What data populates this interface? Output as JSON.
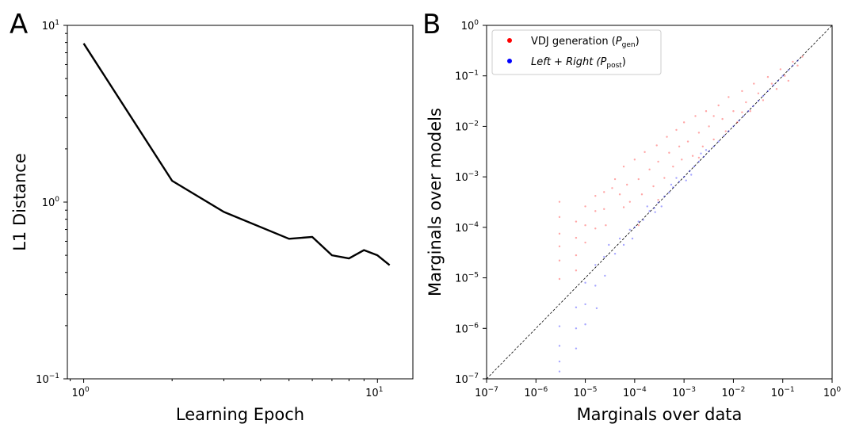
{
  "chart_data": [
    {
      "panel_label": "A",
      "type": "line",
      "xlabel": "Learning Epoch",
      "ylabel": "L1 Distance",
      "xscale": "log",
      "yscale": "log",
      "xlim": [
        0.88,
        13.2
      ],
      "ylim": [
        0.1,
        10
      ],
      "x_ticks": [
        {
          "value": 1,
          "base": "10",
          "exp": "0"
        },
        {
          "value": 10,
          "base": "10",
          "exp": "1"
        }
      ],
      "y_ticks": [
        {
          "value": 0.1,
          "base": "10",
          "exp": "−1"
        },
        {
          "value": 1,
          "base": "10",
          "exp": "0"
        },
        {
          "value": 10,
          "base": "10",
          "exp": "1"
        }
      ],
      "grid": false,
      "series": [
        {
          "color": "#000000",
          "x": [
            1,
            2,
            3,
            5,
            6,
            7,
            8,
            9,
            10,
            11
          ],
          "y": [
            7.9,
            1.32,
            0.88,
            0.62,
            0.635,
            0.5,
            0.48,
            0.535,
            0.5,
            0.44
          ]
        }
      ]
    },
    {
      "panel_label": "B",
      "type": "scatter",
      "xlabel": "Marginals over data",
      "ylabel": "Marginals over models",
      "xscale": "log",
      "yscale": "log",
      "xlim": [
        1e-07,
        1
      ],
      "ylim": [
        1e-07,
        1
      ],
      "x_ticks": [
        {
          "value": 1e-07,
          "base": "10",
          "exp": "−7"
        },
        {
          "value": 1e-06,
          "base": "10",
          "exp": "−6"
        },
        {
          "value": 1e-05,
          "base": "10",
          "exp": "−5"
        },
        {
          "value": 0.0001,
          "base": "10",
          "exp": "−4"
        },
        {
          "value": 0.001,
          "base": "10",
          "exp": "−3"
        },
        {
          "value": 0.01,
          "base": "10",
          "exp": "−2"
        },
        {
          "value": 0.1,
          "base": "10",
          "exp": "−1"
        },
        {
          "value": 1,
          "base": "10",
          "exp": "0"
        }
      ],
      "y_ticks": [
        {
          "value": 1e-07,
          "base": "10",
          "exp": "−7"
        },
        {
          "value": 1e-06,
          "base": "10",
          "exp": "−6"
        },
        {
          "value": 1e-05,
          "base": "10",
          "exp": "−5"
        },
        {
          "value": 0.0001,
          "base": "10",
          "exp": "−4"
        },
        {
          "value": 0.001,
          "base": "10",
          "exp": "−3"
        },
        {
          "value": 0.01,
          "base": "10",
          "exp": "−2"
        },
        {
          "value": 0.1,
          "base": "10",
          "exp": "−1"
        },
        {
          "value": 1,
          "base": "10",
          "exp": "0"
        }
      ],
      "grid": false,
      "diagonal": "y = x (dashed, black)",
      "legend_position": "upper-left",
      "series": [
        {
          "name": "VDJ generation (P_gen)",
          "legend_main": "VDJ generation (",
          "legend_sym": "P",
          "legend_sub": "gen",
          "legend_close": ")",
          "legend_italic": false,
          "color": "#ff0000",
          "points": [
            [
              3e-06,
              0.00032
            ],
            [
              3e-06,
              0.00016
            ],
            [
              3e-06,
              7.5e-05
            ],
            [
              3e-06,
              4.2e-05
            ],
            [
              3e-06,
              2.2e-05
            ],
            [
              3e-06,
              9.5e-06
            ],
            [
              6.5e-06,
              0.00013
            ],
            [
              6.5e-06,
              6.2e-05
            ],
            [
              6.5e-06,
              2.8e-05
            ],
            [
              6.5e-06,
              1.4e-05
            ],
            [
              1e-05,
              0.00026
            ],
            [
              1e-05,
              0.00011
            ],
            [
              1e-05,
              5e-05
            ],
            [
              1.6e-05,
              0.00042
            ],
            [
              1.6e-05,
              0.00021
            ],
            [
              1.6e-05,
              9.5e-05
            ],
            [
              2.4e-05,
              0.0005
            ],
            [
              2.4e-05,
              0.00023
            ],
            [
              2.6e-05,
              0.00011
            ],
            [
              4e-05,
              0.0009
            ],
            [
              5e-05,
              0.00045
            ],
            [
              6e-05,
              0.0016
            ],
            [
              7e-05,
              0.0007
            ],
            [
              8e-05,
              0.00032
            ],
            [
              0.0001,
              0.0022
            ],
            [
              0.00012,
              0.0009
            ],
            [
              0.00014,
              0.00045
            ],
            [
              0.00016,
              0.0031
            ],
            [
              0.0002,
              0.0014
            ],
            [
              0.00024,
              0.00065
            ],
            [
              0.00028,
              0.0042
            ],
            [
              0.0003,
              0.002
            ],
            [
              0.0004,
              0.00095
            ],
            [
              0.00045,
              0.0062
            ],
            [
              0.0005,
              0.003
            ],
            [
              0.0006,
              0.0016
            ],
            [
              0.0007,
              0.0085
            ],
            [
              0.0008,
              0.004
            ],
            [
              0.0009,
              0.0022
            ],
            [
              0.001,
              0.012
            ],
            [
              0.0012,
              0.005
            ],
            [
              0.0015,
              0.0026
            ],
            [
              0.0017,
              0.016
            ],
            [
              0.002,
              0.0075
            ],
            [
              0.0024,
              0.004
            ],
            [
              0.0028,
              0.02
            ],
            [
              0.0032,
              0.01
            ],
            [
              0.004,
              0.0055
            ],
            [
              0.005,
              0.026
            ],
            [
              0.006,
              0.014
            ],
            [
              0.007,
              0.008
            ],
            [
              0.008,
              0.038
            ],
            [
              0.01,
              0.02
            ],
            [
              0.012,
              0.012
            ],
            [
              0.015,
              0.05
            ],
            [
              0.018,
              0.03
            ],
            [
              0.022,
              0.02
            ],
            [
              0.026,
              0.07
            ],
            [
              0.032,
              0.045
            ],
            [
              0.04,
              0.033
            ],
            [
              0.05,
              0.095
            ],
            [
              0.06,
              0.07
            ],
            [
              0.075,
              0.055
            ],
            [
              0.09,
              0.135
            ],
            [
              0.11,
              0.1
            ],
            [
              0.13,
              0.08
            ],
            [
              0.16,
              0.19
            ],
            [
              0.2,
              0.16
            ],
            [
              0.25,
              0.24
            ],
            [
              0.0003,
              0.00035
            ],
            [
              0.002,
              0.0024
            ],
            [
              0.00012,
              0.00011
            ],
            [
              6e-05,
              0.00025
            ],
            [
              3.5e-05,
              0.0006
            ],
            [
              0.004,
              0.016
            ],
            [
              0.015,
              0.019
            ]
          ]
        },
        {
          "name": "Left + Right (P_post)",
          "legend_main": "Left + Right (",
          "legend_sym": "P",
          "legend_sub": "post",
          "legend_close": ")",
          "legend_italic": true,
          "color": "#0000ff",
          "points": [
            [
              3e-06,
              1.1e-06
            ],
            [
              3e-06,
              4.5e-07
            ],
            [
              3e-06,
              2.2e-07
            ],
            [
              3e-06,
              1.4e-07
            ],
            [
              6.5e-06,
              2.6e-06
            ],
            [
              6.5e-06,
              1e-06
            ],
            [
              6.5e-06,
              4e-07
            ],
            [
              1e-05,
              8e-06
            ],
            [
              1e-05,
              3e-06
            ],
            [
              1e-05,
              1.2e-06
            ],
            [
              1.6e-05,
              1.8e-05
            ],
            [
              1.6e-05,
              7e-06
            ],
            [
              1.7e-05,
              2.5e-06
            ],
            [
              2.4e-05,
              2.6e-05
            ],
            [
              2.5e-05,
              1.1e-05
            ],
            [
              3e-05,
              4.5e-05
            ],
            [
              4e-05,
              3e-05
            ],
            [
              5e-05,
              6e-05
            ],
            [
              6e-05,
              4.5e-05
            ],
            [
              8e-05,
              9e-05
            ],
            [
              0.0001,
              0.0001
            ],
            [
              0.00012,
              0.00013
            ],
            [
              0.00015,
              0.00014
            ],
            [
              0.0002,
              0.00021
            ],
            [
              0.00025,
              0.00024
            ],
            [
              0.0003,
              0.00031
            ],
            [
              0.0004,
              0.00041
            ],
            [
              0.0005,
              0.00049
            ],
            [
              0.0006,
              0.00062
            ],
            [
              0.0008,
              0.0008
            ],
            [
              0.001,
              0.001
            ],
            [
              0.0013,
              0.0013
            ],
            [
              0.0016,
              0.0016
            ],
            [
              0.002,
              0.002
            ],
            [
              0.0025,
              0.0025
            ],
            [
              0.0032,
              0.0032
            ],
            [
              0.004,
              0.004
            ],
            [
              0.005,
              0.005
            ],
            [
              0.0065,
              0.0065
            ],
            [
              0.008,
              0.008
            ],
            [
              0.01,
              0.01
            ],
            [
              0.013,
              0.013
            ],
            [
              0.016,
              0.016
            ],
            [
              0.02,
              0.02
            ],
            [
              0.025,
              0.025
            ],
            [
              0.032,
              0.032
            ],
            [
              0.04,
              0.04
            ],
            [
              0.05,
              0.05
            ],
            [
              0.065,
              0.065
            ],
            [
              0.08,
              0.08
            ],
            [
              0.1,
              0.1
            ],
            [
              0.13,
              0.13
            ],
            [
              0.16,
              0.16
            ],
            [
              0.2,
              0.2
            ],
            [
              0.00026,
              0.0002
            ],
            [
              0.00055,
              0.0007
            ],
            [
              0.0011,
              0.00085
            ],
            [
              0.0022,
              0.0029
            ],
            [
              0.00018,
              0.00026
            ],
            [
              0.00035,
              0.00026
            ],
            [
              0.0007,
              0.00095
            ],
            [
              0.0014,
              0.0011
            ],
            [
              0.0028,
              0.0034
            ],
            [
              9e-05,
              6e-05
            ]
          ]
        }
      ]
    }
  ]
}
